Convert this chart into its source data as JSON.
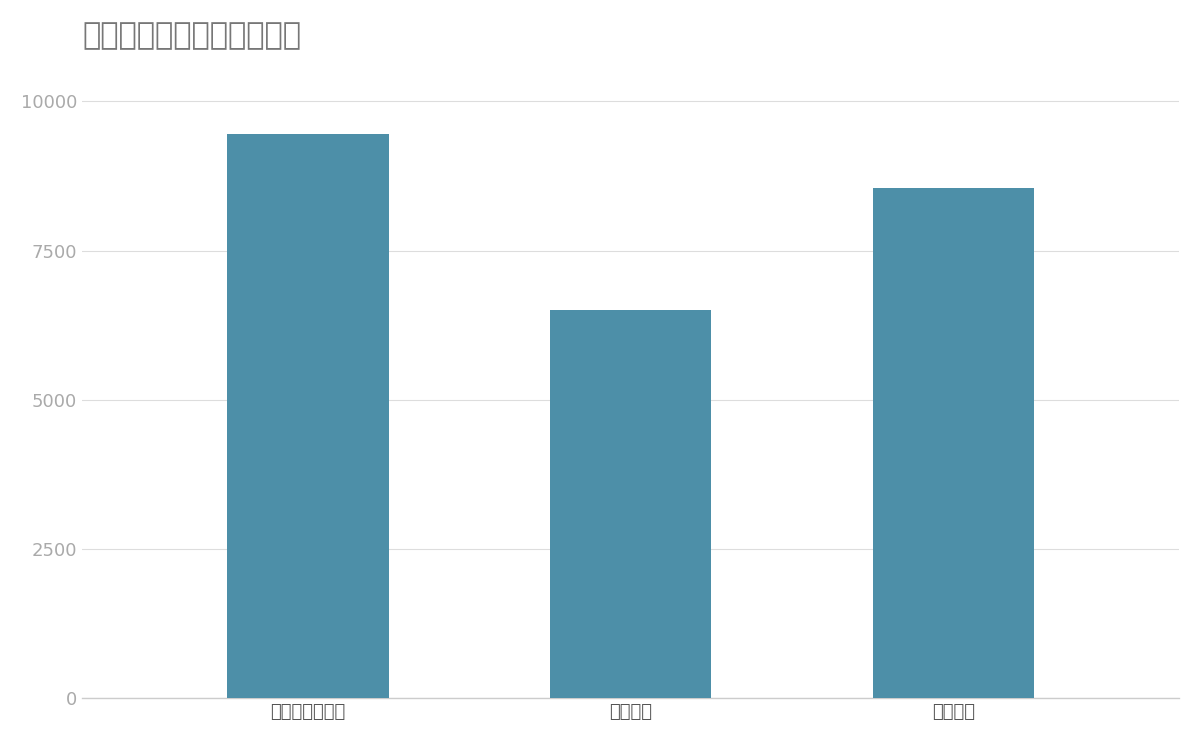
{
  "title": "競合含む売上高（百万円）",
  "categories": [
    "伊藤忠エネクス",
    "三愛石油",
    "岩谷産業"
  ],
  "values": [
    9450,
    6500,
    8550
  ],
  "bar_color": "#4d8fa8",
  "background_color": "#ffffff",
  "ylim": [
    0,
    10500
  ],
  "yticks": [
    0,
    2500,
    5000,
    7500,
    10000
  ],
  "title_fontsize": 22,
  "tick_fontsize": 13,
  "title_color": "#777777",
  "ytick_color": "#aaaaaa",
  "xtick_color": "#555555",
  "grid_color": "#dddddd",
  "bar_width": 0.5
}
